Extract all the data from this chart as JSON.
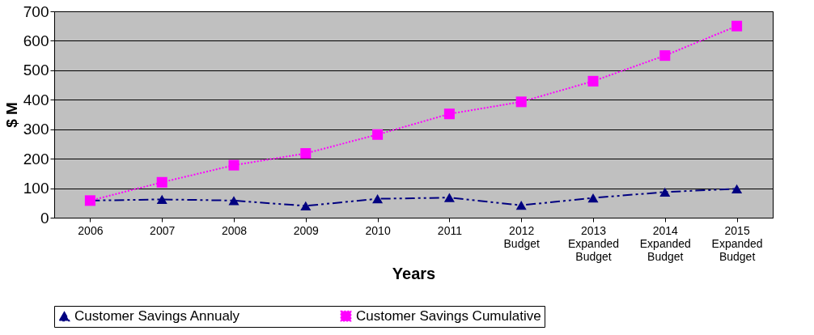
{
  "chart_data": {
    "type": "line",
    "xlabel": "Years",
    "ylabel": "$ M",
    "categories": [
      "2006",
      "2007",
      "2008",
      "2009",
      "2010",
      "2011",
      "2012\nBudget",
      "2013\nExpanded\nBudget",
      "2014\nExpanded\nBudget",
      "2015\nExpanded\nBudget"
    ],
    "series": [
      {
        "name": "Customer Savings Annualy",
        "color": "#000080",
        "marker": "triangle",
        "line_style": "dashed",
        "values": [
          58,
          62,
          58,
          40,
          64,
          68,
          42,
          67,
          87,
          98
        ]
      },
      {
        "name": "Customer Savings Cumulative",
        "color": "#ff00ff",
        "marker": "square",
        "line_style": "dotted",
        "values": [
          58,
          120,
          178,
          218,
          282,
          352,
          393,
          463,
          550,
          650
        ]
      }
    ],
    "ylim": [
      0,
      700
    ],
    "yticks": [
      0,
      100,
      200,
      300,
      400,
      500,
      600,
      700
    ],
    "grid": "y",
    "legend": "bottom"
  }
}
